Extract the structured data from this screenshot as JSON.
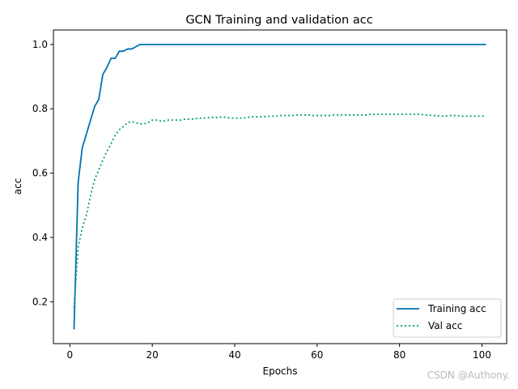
{
  "chart_data": {
    "type": "line",
    "title": "GCN Training and validation acc",
    "xlabel": "Epochs",
    "ylabel": "acc",
    "xlim": [
      -4,
      106
    ],
    "ylim": [
      0.07,
      1.045
    ],
    "xticks": [
      0,
      20,
      40,
      60,
      80,
      100
    ],
    "yticks": [
      0.2,
      0.4,
      0.6,
      0.8,
      1.0
    ],
    "ytick_labels": [
      "0.2",
      "0.4",
      "0.6",
      "0.8",
      "1.0"
    ],
    "grid": false,
    "legend_position": "lower right",
    "x": [
      1,
      2,
      3,
      4,
      5,
      6,
      7,
      8,
      9,
      10,
      11,
      12,
      13,
      14,
      15,
      16,
      17,
      18,
      19,
      20,
      21,
      22,
      23,
      24,
      25,
      26,
      27,
      28,
      29,
      30,
      31,
      32,
      33,
      34,
      35,
      36,
      37,
      38,
      39,
      40,
      41,
      42,
      43,
      44,
      45,
      46,
      47,
      48,
      49,
      50,
      51,
      52,
      53,
      54,
      55,
      56,
      57,
      58,
      59,
      60,
      61,
      62,
      63,
      64,
      65,
      66,
      67,
      68,
      69,
      70,
      71,
      72,
      73,
      74,
      75,
      76,
      77,
      78,
      79,
      80,
      81,
      82,
      83,
      84,
      85,
      86,
      87,
      88,
      89,
      90,
      91,
      92,
      93,
      94,
      95,
      96,
      97,
      98,
      99,
      100,
      101
    ],
    "series": [
      {
        "name": "Training acc",
        "color": "#0072b2",
        "style": "solid",
        "values": [
          0.114,
          0.571,
          0.679,
          0.721,
          0.764,
          0.807,
          0.829,
          0.907,
          0.929,
          0.957,
          0.957,
          0.979,
          0.979,
          0.986,
          0.986,
          0.993,
          1.0,
          1.0,
          1.0,
          1.0,
          1.0,
          1.0,
          1.0,
          1.0,
          1.0,
          1.0,
          1.0,
          1.0,
          1.0,
          1.0,
          1.0,
          1.0,
          1.0,
          1.0,
          1.0,
          1.0,
          1.0,
          1.0,
          1.0,
          1.0,
          1.0,
          1.0,
          1.0,
          1.0,
          1.0,
          1.0,
          1.0,
          1.0,
          1.0,
          1.0,
          1.0,
          1.0,
          1.0,
          1.0,
          1.0,
          1.0,
          1.0,
          1.0,
          1.0,
          1.0,
          1.0,
          1.0,
          1.0,
          1.0,
          1.0,
          1.0,
          1.0,
          1.0,
          1.0,
          1.0,
          1.0,
          1.0,
          1.0,
          1.0,
          1.0,
          1.0,
          1.0,
          1.0,
          1.0,
          1.0,
          1.0,
          1.0,
          1.0,
          1.0,
          1.0,
          1.0,
          1.0,
          1.0,
          1.0,
          1.0,
          1.0,
          1.0,
          1.0,
          1.0,
          1.0,
          1.0,
          1.0,
          1.0,
          1.0,
          1.0,
          1.0
        ]
      },
      {
        "name": "Val acc",
        "color": "#009e73",
        "style": "dotted",
        "values": [
          0.18,
          0.37,
          0.43,
          0.47,
          0.53,
          0.58,
          0.61,
          0.64,
          0.668,
          0.692,
          0.718,
          0.735,
          0.745,
          0.757,
          0.76,
          0.757,
          0.753,
          0.753,
          0.757,
          0.765,
          0.765,
          0.762,
          0.762,
          0.765,
          0.765,
          0.765,
          0.765,
          0.768,
          0.768,
          0.768,
          0.771,
          0.771,
          0.771,
          0.773,
          0.773,
          0.773,
          0.775,
          0.773,
          0.771,
          0.771,
          0.771,
          0.771,
          0.773,
          0.775,
          0.775,
          0.775,
          0.775,
          0.777,
          0.777,
          0.777,
          0.779,
          0.779,
          0.779,
          0.779,
          0.781,
          0.781,
          0.781,
          0.781,
          0.779,
          0.779,
          0.779,
          0.779,
          0.779,
          0.781,
          0.781,
          0.781,
          0.781,
          0.781,
          0.781,
          0.781,
          0.781,
          0.781,
          0.783,
          0.783,
          0.783,
          0.783,
          0.783,
          0.783,
          0.783,
          0.783,
          0.783,
          0.783,
          0.783,
          0.783,
          0.783,
          0.781,
          0.781,
          0.779,
          0.779,
          0.777,
          0.777,
          0.779,
          0.779,
          0.779,
          0.777,
          0.777,
          0.777,
          0.777,
          0.777,
          0.777,
          0.777
        ]
      }
    ]
  },
  "watermark": "CSDN @Authony."
}
